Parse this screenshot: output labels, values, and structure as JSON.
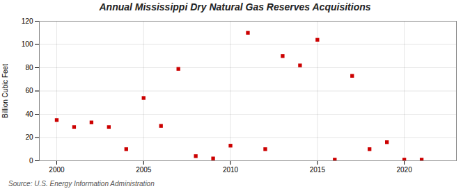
{
  "chart_data": {
    "type": "scatter",
    "title": "Annual Mississippi Dry Natural Gas Reserves Acquisitions",
    "ylabel": "Billion Cubic Feet",
    "source": "Source: U.S. Energy Information Administration",
    "x": [
      2000,
      2001,
      2002,
      2003,
      2004,
      2005,
      2006,
      2007,
      2008,
      2009,
      2010,
      2011,
      2012,
      2013,
      2014,
      2015,
      2016,
      2017,
      2018,
      2019,
      2020,
      2021
    ],
    "values": [
      35,
      29,
      33,
      29,
      10,
      54,
      30,
      79,
      4,
      2,
      13,
      110,
      10,
      90,
      82,
      104,
      1,
      73,
      10,
      16,
      1,
      1
    ],
    "color": "#cc0000",
    "marker": "square",
    "xlim": [
      1999,
      2023
    ],
    "ylim": [
      0,
      120
    ],
    "xticks": [
      2000,
      2005,
      2010,
      2015,
      2020
    ],
    "yticks": [
      0,
      20,
      40,
      60,
      80,
      100,
      120
    ],
    "grid": true
  }
}
